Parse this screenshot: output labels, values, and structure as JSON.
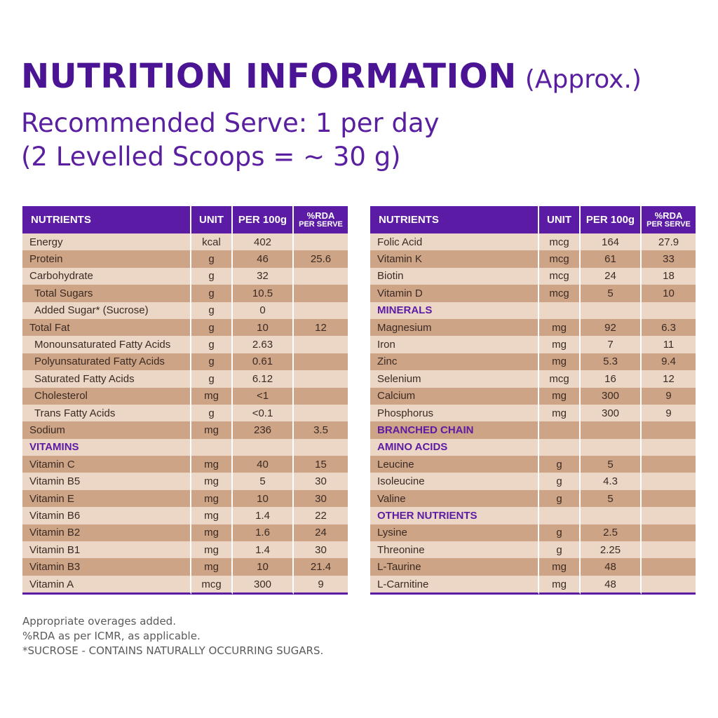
{
  "header": {
    "title": "NUTRITION INFORMATION",
    "title_suffix": "(Approx.)",
    "line1": "Recommended Serve: 1 per day",
    "line2": "(2 Levelled Scoops = ~ 30 g)"
  },
  "columns": {
    "nutrients": "NUTRIENTS",
    "unit": "UNIT",
    "per100": "PER 100g",
    "rda": "%RDA",
    "rda_sub": "PER SERVE"
  },
  "colors": {
    "header_purple": "#5c1ba4",
    "row_light": "#ecd7c6",
    "row_dark": "#cda485"
  },
  "left_rows": [
    {
      "name": "Energy",
      "unit": "kcal",
      "per100": "402",
      "rda": ""
    },
    {
      "name": "Protein",
      "unit": "g",
      "per100": "46",
      "rda": "25.6"
    },
    {
      "name": "Carbohydrate",
      "unit": "g",
      "per100": "32",
      "rda": ""
    },
    {
      "name": "Total Sugars",
      "unit": "g",
      "per100": "10.5",
      "rda": "",
      "indent": true
    },
    {
      "name": "Added Sugar* (Sucrose)",
      "unit": "g",
      "per100": "0",
      "rda": "",
      "indent": true
    },
    {
      "name": "Total Fat",
      "unit": "g",
      "per100": "10",
      "rda": "12"
    },
    {
      "name": "Monounsaturated Fatty Acids",
      "unit": "g",
      "per100": "2.63",
      "rda": "",
      "indent": true
    },
    {
      "name": "Polyunsaturated Fatty Acids",
      "unit": "g",
      "per100": "0.61",
      "rda": "",
      "indent": true
    },
    {
      "name": "Saturated Fatty Acids",
      "unit": "g",
      "per100": "6.12",
      "rda": "",
      "indent": true
    },
    {
      "name": "Cholesterol",
      "unit": "mg",
      "per100": "<1",
      "rda": "",
      "indent": true
    },
    {
      "name": "Trans Fatty Acids",
      "unit": "g",
      "per100": "<0.1",
      "rda": "",
      "indent": true
    },
    {
      "name": "Sodium",
      "unit": "mg",
      "per100": "236",
      "rda": "3.5"
    },
    {
      "name": "VITAMINS",
      "unit": "",
      "per100": "",
      "rda": "",
      "section": true
    },
    {
      "name": "Vitamin C",
      "unit": "mg",
      "per100": "40",
      "rda": "15"
    },
    {
      "name": "Vitamin B5",
      "unit": "mg",
      "per100": "5",
      "rda": "30"
    },
    {
      "name": "Vitamin E",
      "unit": "mg",
      "per100": "10",
      "rda": "30"
    },
    {
      "name": "Vitamin B6",
      "unit": "mg",
      "per100": "1.4",
      "rda": "22"
    },
    {
      "name": "Vitamin B2",
      "unit": "mg",
      "per100": "1.6",
      "rda": "24"
    },
    {
      "name": "Vitamin B1",
      "unit": "mg",
      "per100": "1.4",
      "rda": "30"
    },
    {
      "name": "Vitamin B3",
      "unit": "mg",
      "per100": "10",
      "rda": "21.4"
    },
    {
      "name": "Vitamin A",
      "unit": "mcg",
      "per100": "300",
      "rda": "9"
    }
  ],
  "right_rows": [
    {
      "name": "Folic Acid",
      "unit": "mcg",
      "per100": "164",
      "rda": "27.9"
    },
    {
      "name": "Vitamin K",
      "unit": "mcg",
      "per100": "61",
      "rda": "33"
    },
    {
      "name": "Biotin",
      "unit": "mcg",
      "per100": "24",
      "rda": "18"
    },
    {
      "name": "Vitamin D",
      "unit": "mcg",
      "per100": "5",
      "rda": "10"
    },
    {
      "name": "MINERALS",
      "unit": "",
      "per100": "",
      "rda": "",
      "section": true
    },
    {
      "name": "Magnesium",
      "unit": "mg",
      "per100": "92",
      "rda": "6.3"
    },
    {
      "name": "Iron",
      "unit": "mg",
      "per100": "7",
      "rda": "11"
    },
    {
      "name": "Zinc",
      "unit": "mg",
      "per100": "5.3",
      "rda": "9.4"
    },
    {
      "name": "Selenium",
      "unit": "mcg",
      "per100": "16",
      "rda": "12"
    },
    {
      "name": "Calcium",
      "unit": "mg",
      "per100": "300",
      "rda": "9"
    },
    {
      "name": "Phosphorus",
      "unit": "mg",
      "per100": "300",
      "rda": "9"
    },
    {
      "name": "BRANCHED CHAIN",
      "unit": "",
      "per100": "",
      "rda": "",
      "section": true
    },
    {
      "name": "AMINO ACIDS",
      "unit": "",
      "per100": "",
      "rda": "",
      "section": true
    },
    {
      "name": "Leucine",
      "unit": "g",
      "per100": "5",
      "rda": ""
    },
    {
      "name": "Isoleucine",
      "unit": "g",
      "per100": "4.3",
      "rda": ""
    },
    {
      "name": "Valine",
      "unit": "g",
      "per100": "5",
      "rda": ""
    },
    {
      "name": "OTHER NUTRIENTS",
      "unit": "",
      "per100": "",
      "rda": "",
      "section": true
    },
    {
      "name": "Lysine",
      "unit": "g",
      "per100": "2.5",
      "rda": ""
    },
    {
      "name": "Threonine",
      "unit": "g",
      "per100": "2.25",
      "rda": ""
    },
    {
      "name": "L-Taurine",
      "unit": "mg",
      "per100": "48",
      "rda": ""
    },
    {
      "name": "L-Carnitine",
      "unit": "mg",
      "per100": "48",
      "rda": ""
    }
  ],
  "footnotes": [
    "Appropriate overages added.",
    "%RDA as per ICMR, as applicable.",
    "*SUCROSE - CONTAINS NATURALLY OCCURRING SUGARS."
  ]
}
